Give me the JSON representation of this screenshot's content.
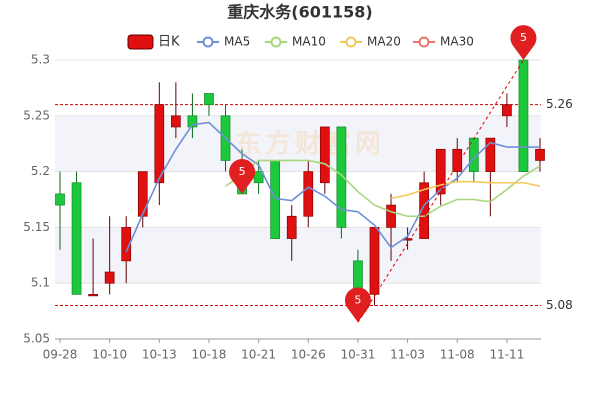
{
  "chart_data": {
    "type": "candlestick",
    "title": "重庆水务(601158)",
    "watermark": "东方财富网",
    "categories": [
      "09-28",
      null,
      null,
      "10-10",
      null,
      null,
      "10-13",
      null,
      null,
      "10-18",
      null,
      null,
      "10-21",
      null,
      null,
      "10-26",
      null,
      null,
      "10-31",
      null,
      null,
      "11-03",
      null,
      null,
      "11-08",
      null,
      null,
      "11-11",
      null,
      null
    ],
    "series": [
      {
        "name": "日K",
        "color": "#e01010",
        "down_color": "#1ec83c",
        "open": [
          5.18,
          5.19,
          5.09,
          5.1,
          5.12,
          5.16,
          5.19,
          5.24,
          5.25,
          5.27,
          5.25,
          5.2,
          5.2,
          5.21,
          5.14,
          5.16,
          5.19,
          5.24,
          5.12,
          5.09,
          5.15,
          5.14,
          5.14,
          5.18,
          5.2,
          5.23,
          5.2,
          5.25,
          5.3,
          5.21
        ],
        "high": [
          5.2,
          5.2,
          5.14,
          5.16,
          5.16,
          5.2,
          5.28,
          5.28,
          5.27,
          5.27,
          5.26,
          5.22,
          5.21,
          5.21,
          5.17,
          5.21,
          5.24,
          5.24,
          5.13,
          5.15,
          5.18,
          5.15,
          5.2,
          5.22,
          5.23,
          5.23,
          5.23,
          5.27,
          5.3,
          5.23
        ],
        "low": [
          5.13,
          5.09,
          5.09,
          5.09,
          5.1,
          5.15,
          5.17,
          5.23,
          5.23,
          5.25,
          5.2,
          5.18,
          5.18,
          5.14,
          5.12,
          5.15,
          5.18,
          5.14,
          5.08,
          5.08,
          5.12,
          5.13,
          5.14,
          5.17,
          5.19,
          5.19,
          5.16,
          5.24,
          5.2,
          5.2
        ],
        "close": [
          5.17,
          5.09,
          5.09,
          5.11,
          5.15,
          5.2,
          5.26,
          5.25,
          5.24,
          5.26,
          5.21,
          5.18,
          5.19,
          5.14,
          5.16,
          5.2,
          5.24,
          5.15,
          5.09,
          5.15,
          5.17,
          5.14,
          5.19,
          5.22,
          5.22,
          5.2,
          5.23,
          5.26,
          5.2,
          5.22
        ]
      },
      {
        "name": "MA5",
        "color": "#6f8fd8",
        "values": [
          null,
          null,
          null,
          null,
          5.128,
          5.162,
          5.194,
          5.22,
          5.242,
          5.244,
          5.23,
          5.216,
          5.206,
          5.176,
          5.174,
          5.186,
          5.178,
          5.166,
          5.164,
          5.152,
          5.132,
          5.142,
          5.17,
          5.184,
          5.194,
          5.212,
          5.226,
          5.222,
          5.222,
          5.222
        ]
      },
      {
        "name": "MA10",
        "color": "#a8d67c",
        "values": [
          null,
          null,
          null,
          null,
          null,
          null,
          null,
          null,
          null,
          null,
          5.187,
          5.197,
          5.21,
          5.21,
          5.21,
          5.21,
          5.207,
          5.197,
          5.182,
          5.17,
          5.164,
          5.16,
          5.16,
          5.169,
          5.175,
          5.175,
          5.173,
          5.184,
          5.196,
          5.205
        ]
      },
      {
        "name": "MA20",
        "color": "#f5c85a",
        "values": [
          null,
          null,
          null,
          null,
          null,
          null,
          null,
          null,
          null,
          null,
          null,
          null,
          null,
          null,
          null,
          null,
          null,
          null,
          null,
          null,
          5.176,
          5.179,
          5.184,
          5.188,
          5.191,
          5.191,
          5.19,
          5.19,
          5.19,
          5.187
        ]
      },
      {
        "name": "MA30",
        "color": "#f07070",
        "values": [
          null,
          null,
          null,
          null,
          null,
          null,
          null,
          null,
          null,
          null,
          null,
          null,
          null,
          null,
          null,
          null,
          null,
          null,
          null,
          null,
          null,
          null,
          null,
          null,
          null,
          null,
          null,
          null,
          null,
          null
        ]
      }
    ],
    "markers": {
      "label": "5",
      "color": "#e02020",
      "values": [
        null,
        null,
        null,
        null,
        null,
        null,
        null,
        null,
        null,
        null,
        null,
        5.18,
        null,
        null,
        null,
        null,
        null,
        null,
        5.065,
        null,
        null,
        null,
        null,
        null,
        null,
        null,
        null,
        null,
        5.3,
        null
      ]
    },
    "hlines": [
      5.26,
      5.08
    ],
    "ylim": [
      5.05,
      5.3
    ],
    "yticks": [
      5.05,
      5.1,
      5.15,
      5.2,
      5.25,
      5.3
    ],
    "grid": true
  }
}
